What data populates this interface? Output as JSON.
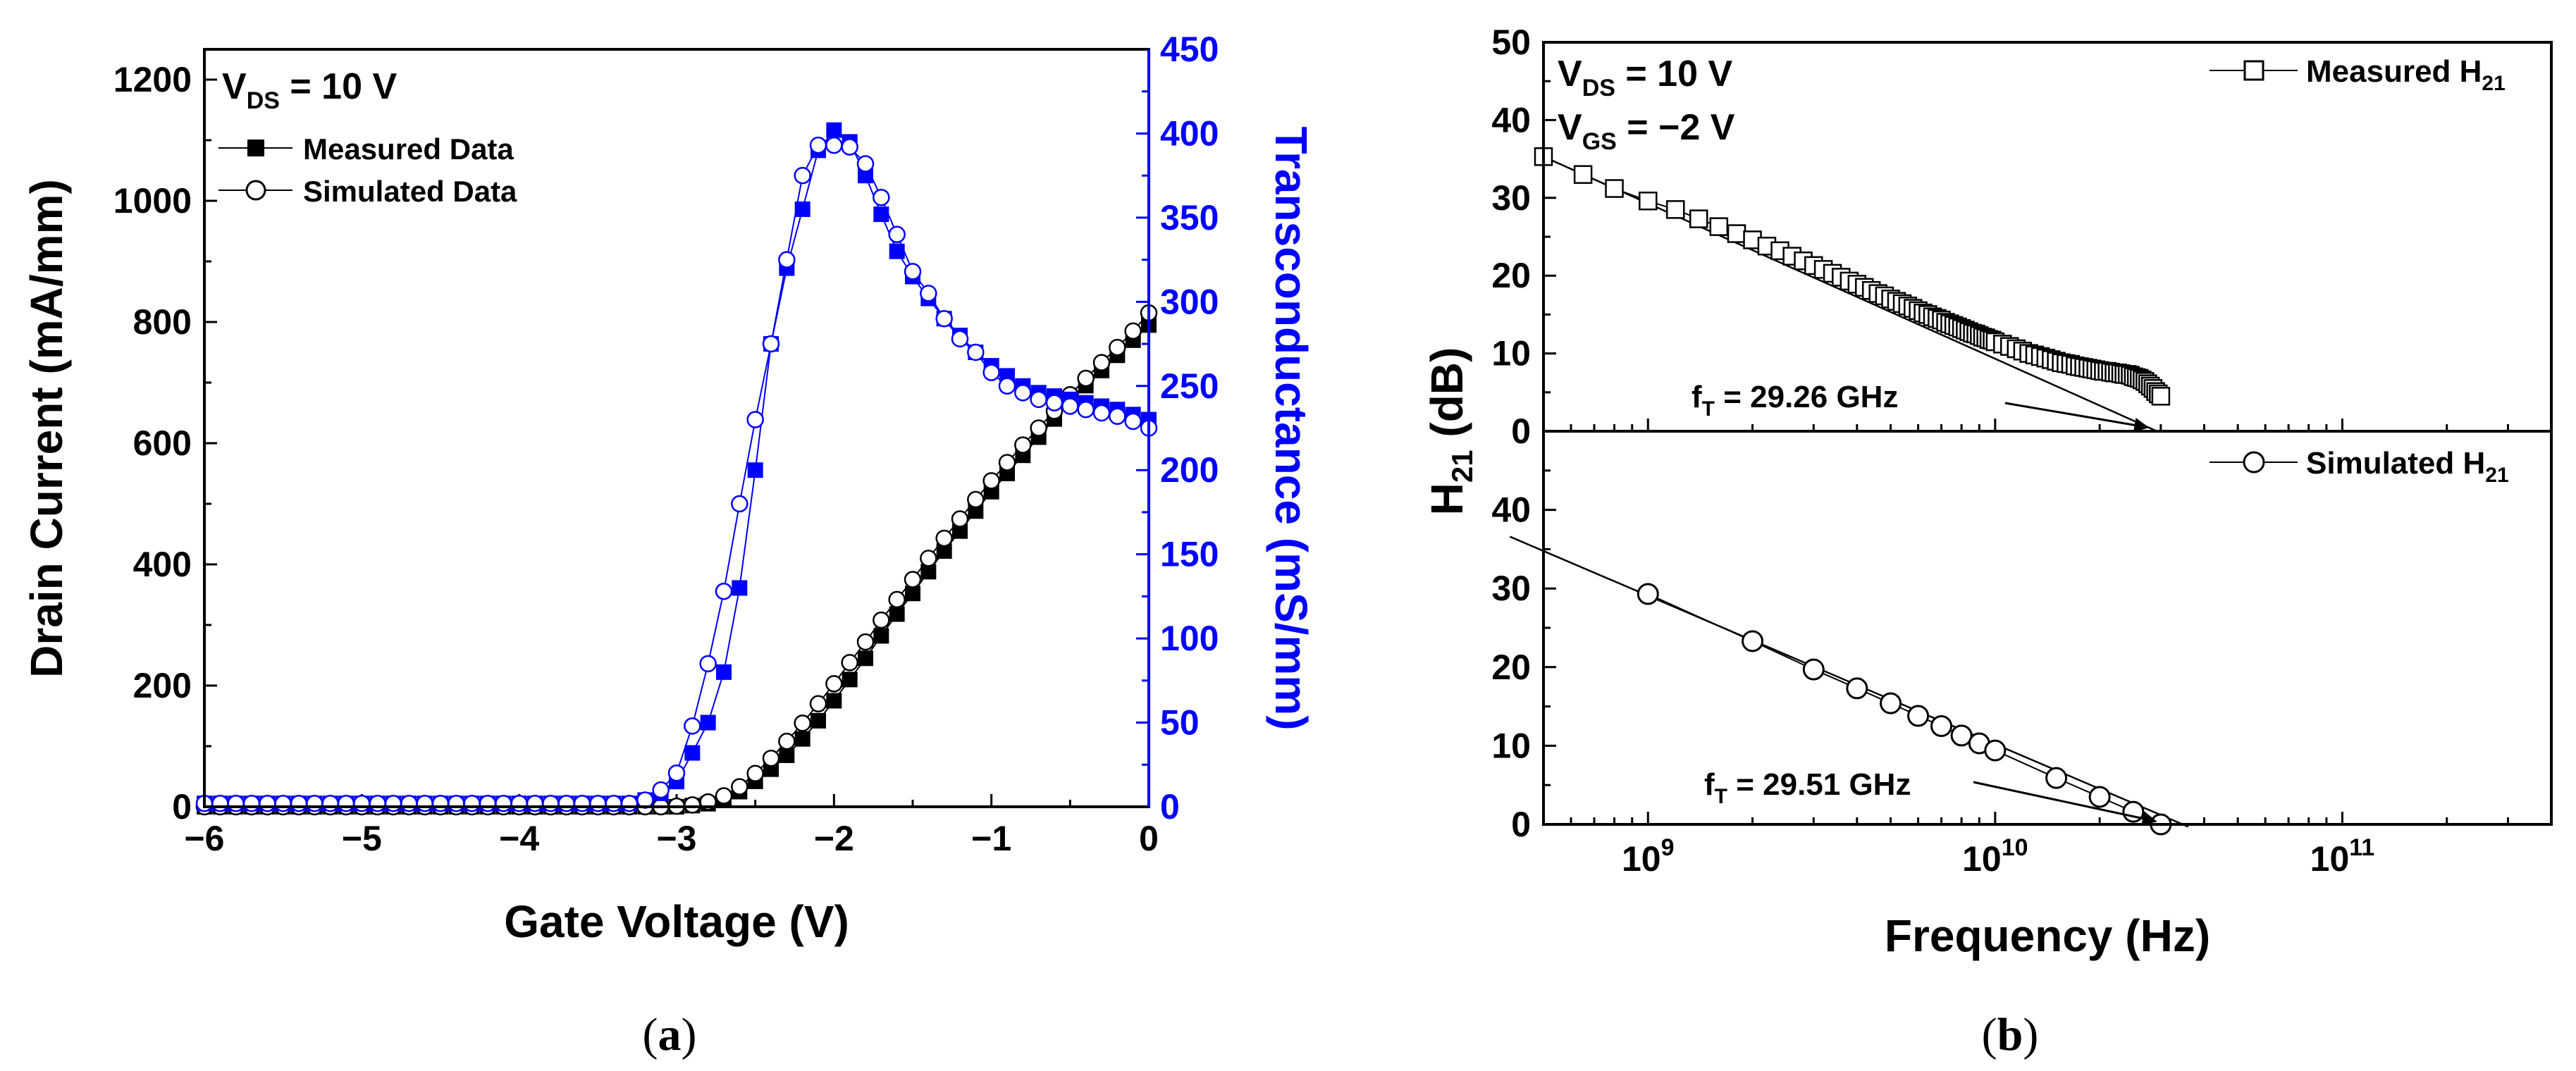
{
  "chart_data": [
    {
      "type": "line",
      "panel": "(a)",
      "vds_label": {
        "main": "V",
        "sub": "DS",
        "rest": " = 10 V"
      },
      "xlabel": "Gate Voltage (V)",
      "ylabel": "Drain Current (mA/mm)",
      "y2label": "Transconductance (mS/mm)",
      "xlim": [
        -6,
        0
      ],
      "ylim": [
        0,
        1250
      ],
      "y2lim": [
        0,
        450
      ],
      "xticks": [
        -6,
        -5,
        -4,
        -3,
        -2,
        -1,
        0
      ],
      "xtick_labels": [
        "−6",
        "−5",
        "−4",
        "−3",
        "−2",
        "−1",
        "0"
      ],
      "yticks": [
        0,
        200,
        400,
        600,
        800,
        1000,
        1200
      ],
      "y2ticks": [
        0,
        50,
        100,
        150,
        200,
        250,
        300,
        350,
        400,
        450
      ],
      "legend": [
        "Measured Data",
        "Simulated Data"
      ],
      "series": [
        {
          "name": "Measured Drain Current",
          "axis": "left",
          "color": "#000000",
          "marker": "filled-square",
          "x": [
            -6.0,
            -5.9,
            -5.8,
            -5.7,
            -5.6,
            -5.5,
            -5.4,
            -5.3,
            -5.2,
            -5.1,
            -5.0,
            -4.9,
            -4.8,
            -4.7,
            -4.6,
            -4.5,
            -4.4,
            -4.3,
            -4.2,
            -4.1,
            -4.0,
            -3.9,
            -3.8,
            -3.7,
            -3.6,
            -3.5,
            -3.4,
            -3.3,
            -3.2,
            -3.1,
            -3.0,
            -2.9,
            -2.8,
            -2.7,
            -2.6,
            -2.5,
            -2.4,
            -2.3,
            -2.2,
            -2.1,
            -2.0,
            -1.9,
            -1.8,
            -1.7,
            -1.6,
            -1.5,
            -1.4,
            -1.3,
            -1.2,
            -1.1,
            -1.0,
            -0.9,
            -0.8,
            -0.7,
            -0.6,
            -0.5,
            -0.4,
            -0.3,
            -0.2,
            -0.1,
            0.0
          ],
          "y": [
            0,
            0,
            0,
            0,
            0,
            0,
            0,
            0,
            0,
            0,
            0,
            0,
            0,
            0,
            0,
            0,
            0,
            0,
            0,
            0,
            0,
            0,
            0,
            0,
            0,
            0,
            0,
            0,
            0,
            0,
            0,
            2,
            5,
            12,
            25,
            42,
            62,
            85,
            112,
            142,
            175,
            210,
            245,
            282,
            318,
            352,
            388,
            422,
            455,
            488,
            520,
            550,
            580,
            610,
            640,
            668,
            695,
            720,
            745,
            770,
            795
          ]
        },
        {
          "name": "Simulated Drain Current",
          "axis": "left",
          "color": "#000000",
          "marker": "open-circle",
          "x": [
            -6.0,
            -5.9,
            -5.8,
            -5.7,
            -5.6,
            -5.5,
            -5.4,
            -5.3,
            -5.2,
            -5.1,
            -5.0,
            -4.9,
            -4.8,
            -4.7,
            -4.6,
            -4.5,
            -4.4,
            -4.3,
            -4.2,
            -4.1,
            -4.0,
            -3.9,
            -3.8,
            -3.7,
            -3.6,
            -3.5,
            -3.4,
            -3.3,
            -3.2,
            -3.1,
            -3.0,
            -2.9,
            -2.8,
            -2.7,
            -2.6,
            -2.5,
            -2.4,
            -2.3,
            -2.2,
            -2.1,
            -2.0,
            -1.9,
            -1.8,
            -1.7,
            -1.6,
            -1.5,
            -1.4,
            -1.3,
            -1.2,
            -1.1,
            -1.0,
            -0.9,
            -0.8,
            -0.7,
            -0.6,
            -0.5,
            -0.4,
            -0.3,
            -0.2,
            -0.1,
            0.0
          ],
          "y": [
            0,
            0,
            0,
            0,
            0,
            0,
            0,
            0,
            0,
            0,
            0,
            0,
            0,
            0,
            0,
            0,
            0,
            0,
            0,
            0,
            0,
            0,
            0,
            0,
            0,
            0,
            0,
            0,
            0,
            0,
            1,
            3,
            8,
            18,
            33,
            55,
            80,
            108,
            138,
            170,
            203,
            238,
            272,
            308,
            342,
            375,
            410,
            443,
            475,
            507,
            538,
            568,
            597,
            625,
            653,
            680,
            707,
            733,
            758,
            785,
            815
          ]
        },
        {
          "name": "Measured Transconductance",
          "axis": "right",
          "color": "#0000ff",
          "marker": "filled-square",
          "x": [
            -6.0,
            -5.9,
            -5.8,
            -5.7,
            -5.6,
            -5.5,
            -5.4,
            -5.3,
            -5.2,
            -5.1,
            -5.0,
            -4.9,
            -4.8,
            -4.7,
            -4.6,
            -4.5,
            -4.4,
            -4.3,
            -4.2,
            -4.1,
            -4.0,
            -3.9,
            -3.8,
            -3.7,
            -3.6,
            -3.5,
            -3.4,
            -3.3,
            -3.2,
            -3.1,
            -3.0,
            -2.9,
            -2.8,
            -2.7,
            -2.6,
            -2.5,
            -2.4,
            -2.3,
            -2.2,
            -2.1,
            -2.0,
            -1.9,
            -1.8,
            -1.7,
            -1.6,
            -1.5,
            -1.4,
            -1.3,
            -1.2,
            -1.1,
            -1.0,
            -0.9,
            -0.8,
            -0.7,
            -0.6,
            -0.5,
            -0.4,
            -0.3,
            -0.2,
            -0.1,
            0.0
          ],
          "y": [
            2,
            2,
            2,
            2,
            2,
            2,
            2,
            2,
            2,
            2,
            2,
            2,
            2,
            2,
            2,
            2,
            2,
            2,
            2,
            2,
            2,
            2,
            2,
            2,
            2,
            2,
            2,
            2,
            4,
            8,
            15,
            32,
            50,
            80,
            130,
            200,
            275,
            320,
            355,
            390,
            402,
            395,
            375,
            352,
            330,
            315,
            302,
            290,
            280,
            270,
            262,
            256,
            250,
            246,
            244,
            242,
            240,
            238,
            236,
            233,
            230
          ]
        },
        {
          "name": "Simulated Transconductance",
          "axis": "right",
          "color": "#0000ff",
          "marker": "open-circle",
          "x": [
            -6.0,
            -5.9,
            -5.8,
            -5.7,
            -5.6,
            -5.5,
            -5.4,
            -5.3,
            -5.2,
            -5.1,
            -5.0,
            -4.9,
            -4.8,
            -4.7,
            -4.6,
            -4.5,
            -4.4,
            -4.3,
            -4.2,
            -4.1,
            -4.0,
            -3.9,
            -3.8,
            -3.7,
            -3.6,
            -3.5,
            -3.4,
            -3.3,
            -3.2,
            -3.1,
            -3.0,
            -2.9,
            -2.8,
            -2.7,
            -2.6,
            -2.5,
            -2.4,
            -2.3,
            -2.2,
            -2.1,
            -2.0,
            -1.9,
            -1.8,
            -1.7,
            -1.6,
            -1.5,
            -1.4,
            -1.3,
            -1.2,
            -1.1,
            -1.0,
            -0.9,
            -0.8,
            -0.7,
            -0.6,
            -0.5,
            -0.4,
            -0.3,
            -0.2,
            -0.1,
            0.0
          ],
          "y": [
            2,
            2,
            2,
            2,
            2,
            2,
            2,
            2,
            2,
            2,
            2,
            2,
            2,
            2,
            2,
            2,
            2,
            2,
            2,
            2,
            2,
            2,
            2,
            2,
            2,
            2,
            2,
            2,
            4,
            10,
            20,
            48,
            85,
            128,
            180,
            230,
            275,
            325,
            375,
            393,
            393,
            392,
            382,
            362,
            340,
            318,
            305,
            290,
            278,
            270,
            258,
            250,
            246,
            242,
            240,
            238,
            236,
            234,
            232,
            229,
            225
          ]
        }
      ],
      "caption": "(a)"
    },
    {
      "type": "line",
      "panel": "(b)",
      "xlabel": "Frequency (Hz)",
      "ylabel": {
        "main": "H",
        "sub": "21",
        "rest": " (dB)"
      },
      "xscale": "log",
      "xlim": [
        500000000,
        400000000000
      ],
      "xtick_labels": [
        {
          "base": "10",
          "exp": "9"
        },
        {
          "base": "10",
          "exp": "10"
        },
        {
          "base": "10",
          "exp": "11"
        }
      ],
      "xticks": [
        1000000000,
        10000000000,
        100000000000
      ],
      "caption": "(b)",
      "subplots": [
        {
          "name": "Measured H21",
          "ylim": [
            0,
            50
          ],
          "yticks": [
            0,
            10,
            20,
            30,
            40,
            50
          ],
          "bias_labels": [
            {
              "main": "V",
              "sub": "DS",
              "rest": " = 10 V"
            },
            {
              "main": "V",
              "sub": "GS",
              "rest": " = −2 V"
            }
          ],
          "legend": {
            "main": "Measured H",
            "sub": "21"
          },
          "marker": "open-square",
          "x": [
            500000000,
            650000000,
            800000000,
            1000000000,
            1200000000,
            1400000000,
            1600000000,
            1800000000,
            2000000000,
            2200000000,
            2400000000,
            2600000000,
            2800000000,
            3000000000,
            3200000000,
            3400000000,
            3600000000,
            3800000000,
            4000000000,
            4200000000,
            4400000000,
            4600000000,
            4800000000,
            5000000000,
            5200000000,
            5400000000,
            5600000000,
            5800000000,
            6000000000,
            6200000000,
            6400000000,
            6600000000,
            6800000000,
            7000000000,
            7200000000,
            7400000000,
            7600000000,
            7800000000,
            8000000000,
            8200000000,
            8400000000,
            8600000000,
            8800000000,
            9000000000,
            9200000000,
            9400000000,
            9600000000,
            9800000000,
            10000000000,
            10500000000,
            11000000000,
            11500000000,
            12000000000,
            12500000000,
            13000000000,
            13500000000,
            14000000000,
            14500000000,
            15000000000,
            15500000000,
            16000000000,
            16500000000,
            17000000000,
            17500000000,
            18000000000,
            18500000000,
            19000000000,
            19500000000,
            20000000000,
            20500000000,
            21000000000,
            21500000000,
            22000000000,
            22500000000,
            23000000000,
            23500000000,
            24000000000,
            24500000000,
            25000000000,
            25500000000,
            26000000000,
            26500000000,
            27000000000,
            27500000000,
            28000000000,
            28500000000,
            29000000000,
            29500000000,
            30000000000
          ],
          "y": [
            35.3,
            33.0,
            31.2,
            29.6,
            28.5,
            27.3,
            26.3,
            25.4,
            24.6,
            23.8,
            23.2,
            22.5,
            21.9,
            21.3,
            20.8,
            20.3,
            19.8,
            19.3,
            18.9,
            18.5,
            18.1,
            17.7,
            17.4,
            17.0,
            16.7,
            16.4,
            16.1,
            15.8,
            15.5,
            15.2,
            15.0,
            14.7,
            14.5,
            14.3,
            14.0,
            13.8,
            13.6,
            13.4,
            13.2,
            13.0,
            12.8,
            12.6,
            12.5,
            12.3,
            12.1,
            12.0,
            11.8,
            11.7,
            11.5,
            11.2,
            10.9,
            10.6,
            10.3,
            10.0,
            9.8,
            9.6,
            9.4,
            9.2,
            9.0,
            8.8,
            8.7,
            8.6,
            8.4,
            8.3,
            8.2,
            8.1,
            8.0,
            7.9,
            7.8,
            7.7,
            7.7,
            7.6,
            7.5,
            7.5,
            7.4,
            7.3,
            7.3,
            7.2,
            7.0,
            6.9,
            6.8,
            6.6,
            6.4,
            6.1,
            5.8,
            5.5,
            5.1,
            4.8,
            4.5
          ],
          "fit_line": {
            "x": [
              500000000,
              29260000000
            ],
            "y": [
              35.3,
              0
            ]
          },
          "annotation": {
            "main": "f",
            "sub": "T",
            "rest": " = 29.26 GHz",
            "target_x": 27500000000,
            "target_y": 0.5
          }
        },
        {
          "name": "Simulated H21",
          "ylim": [
            0,
            50
          ],
          "yticks": [
            0,
            10,
            20,
            30,
            40
          ],
          "legend": {
            "main": "Simulated H",
            "sub": "21"
          },
          "marker": "open-circle",
          "x": [
            1000000000,
            2000000000,
            3000000000,
            4000000000,
            5000000000,
            6000000000,
            7000000000,
            8000000000,
            9000000000,
            10000000000,
            15000000000,
            20000000000,
            25000000000,
            30000000000
          ],
          "y": [
            29.3,
            23.3,
            19.7,
            17.3,
            15.4,
            13.8,
            12.5,
            11.3,
            10.3,
            9.4,
            5.9,
            3.5,
            1.6,
            0.0
          ],
          "fit_line": {
            "x": [
              400000000,
              36000000000
            ],
            "y": [
              36.6,
              -0.3
            ]
          },
          "annotation": {
            "main": "f",
            "sub": "T",
            "rest": " = 29.51 GHz",
            "target_x": 29000000000,
            "target_y": 0.4
          }
        }
      ]
    }
  ]
}
